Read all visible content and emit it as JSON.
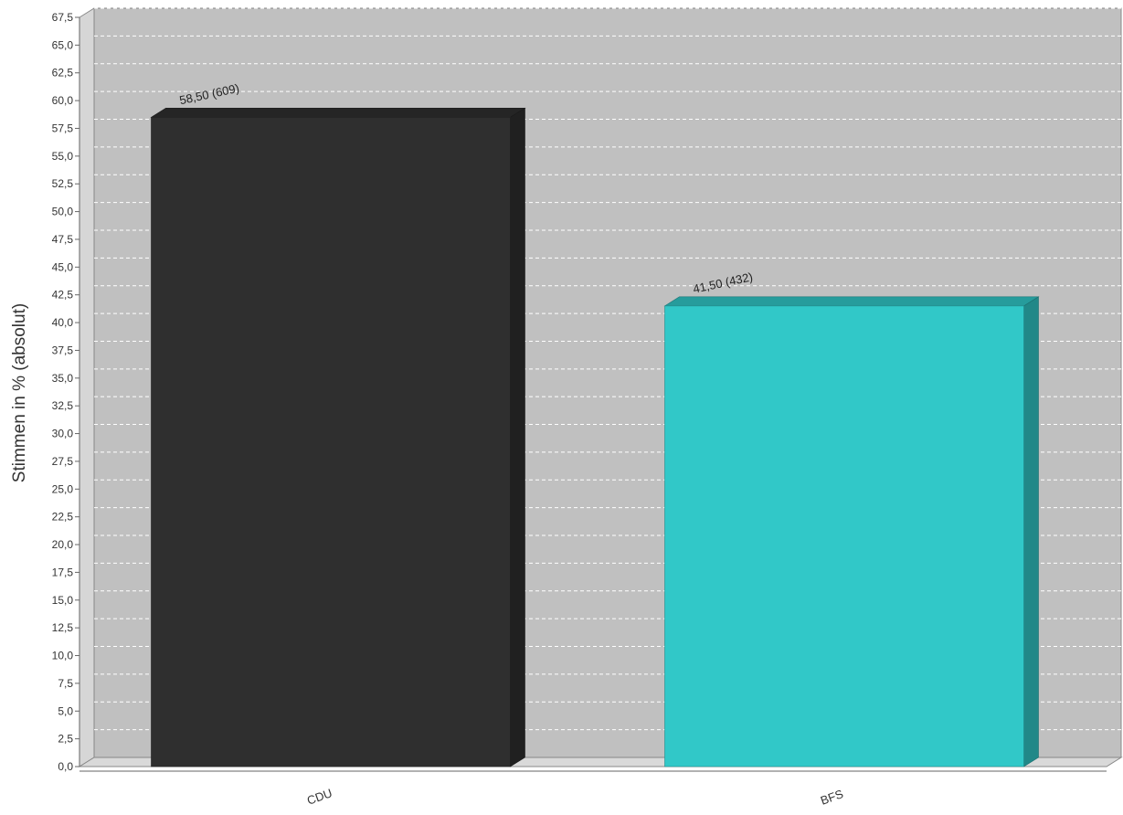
{
  "chart_data": {
    "type": "bar",
    "style": "3d",
    "categories": [
      "CDU",
      "BFS"
    ],
    "values": [
      58.5,
      41.5
    ],
    "absolute_votes": [
      609,
      432
    ],
    "data_labels": [
      "58,50 (609)",
      "41,50 (432)"
    ],
    "colors": [
      "#2f2f2f",
      "#31c8c8"
    ],
    "title": "",
    "xlabel": "",
    "ylabel": "Stimmen in % (absolut)",
    "ylim": [
      0,
      67.5
    ],
    "ytick_step": 2.5,
    "ytick_labels": [
      "0,0",
      "2,5",
      "5,0",
      "7,5",
      "10,0",
      "12,5",
      "15,0",
      "17,5",
      "20,0",
      "22,5",
      "25,0",
      "27,5",
      "30,0",
      "32,5",
      "35,0",
      "37,5",
      "40,0",
      "42,5",
      "45,0",
      "47,5",
      "50,0",
      "52,5",
      "55,0",
      "57,5",
      "60,0",
      "62,5",
      "65,0",
      "67,5"
    ],
    "grid": true,
    "plot_background": "#c0c0c0"
  }
}
